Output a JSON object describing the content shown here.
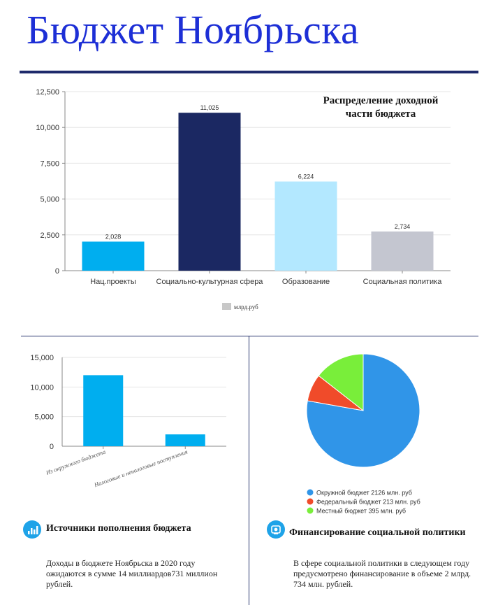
{
  "page": {
    "title": "Бюджет Ноябрьска"
  },
  "colors": {
    "title": "#1d2fd6",
    "rule": "#1e2a6b",
    "accent": "#1fa3e8"
  },
  "chart_data": [
    {
      "type": "bar",
      "title": "Распределение доходной части бюджета",
      "title_lines": [
        "Распределение доходной",
        "части бюджета"
      ],
      "categories": [
        "Нац.проекты",
        "Социально-культурная сфера",
        "Образование",
        "Социальная политика"
      ],
      "values": [
        2028,
        11025,
        6224,
        2734
      ],
      "value_labels": [
        "2,028",
        "11,025",
        "6,224",
        "2,734"
      ],
      "bar_colors": [
        "#00aeef",
        "#1b2862",
        "#b3e8ff",
        "#c4c6d0"
      ],
      "yticks": [
        0,
        2500,
        5000,
        7500,
        10000,
        12500
      ],
      "ytick_labels": [
        "0",
        "2,500",
        "5,000",
        "7,500",
        "10,000",
        "12,500"
      ],
      "ylim": [
        0,
        12500
      ],
      "legend": [
        "млрд.руб"
      ],
      "legend_color": "#c8c8c8",
      "grid": true
    },
    {
      "type": "bar",
      "categories": [
        "Из окружного бюджета",
        "Налоговые и неналоговые поступления"
      ],
      "values": [
        12000,
        2000
      ],
      "bar_color": "#00aeef",
      "yticks": [
        0,
        5000,
        10000,
        15000
      ],
      "ytick_labels": [
        "0",
        "5,000",
        "10,000",
        "15,000"
      ],
      "ylim": [
        0,
        15000
      ],
      "grid": true
    },
    {
      "type": "pie",
      "labels": [
        "Окружной бюджет 2126 млн. руб",
        "Федеральный бюджет 213 млн. руб",
        "Местный бюджет 395 млн. руб"
      ],
      "values": [
        2126,
        213,
        395
      ],
      "colors": [
        "#3095e8",
        "#f04b2a",
        "#79ee3a"
      ]
    }
  ],
  "sections": {
    "sources": {
      "heading": "Источники пополнения бюджета",
      "text": "Доходы в бюджете Ноябрьска в 2020 году ожидаются в сумме 14 миллиардов731 миллион рублей.",
      "icon": "bar-chart-icon"
    },
    "social": {
      "heading": "Финансирование социальной политики",
      "text": "В сфере социальной политики в следующем году предусмотрено финансирование в объеме 2 млрд. 734 млн. рублей.",
      "icon": "piggy-bank-icon"
    }
  }
}
